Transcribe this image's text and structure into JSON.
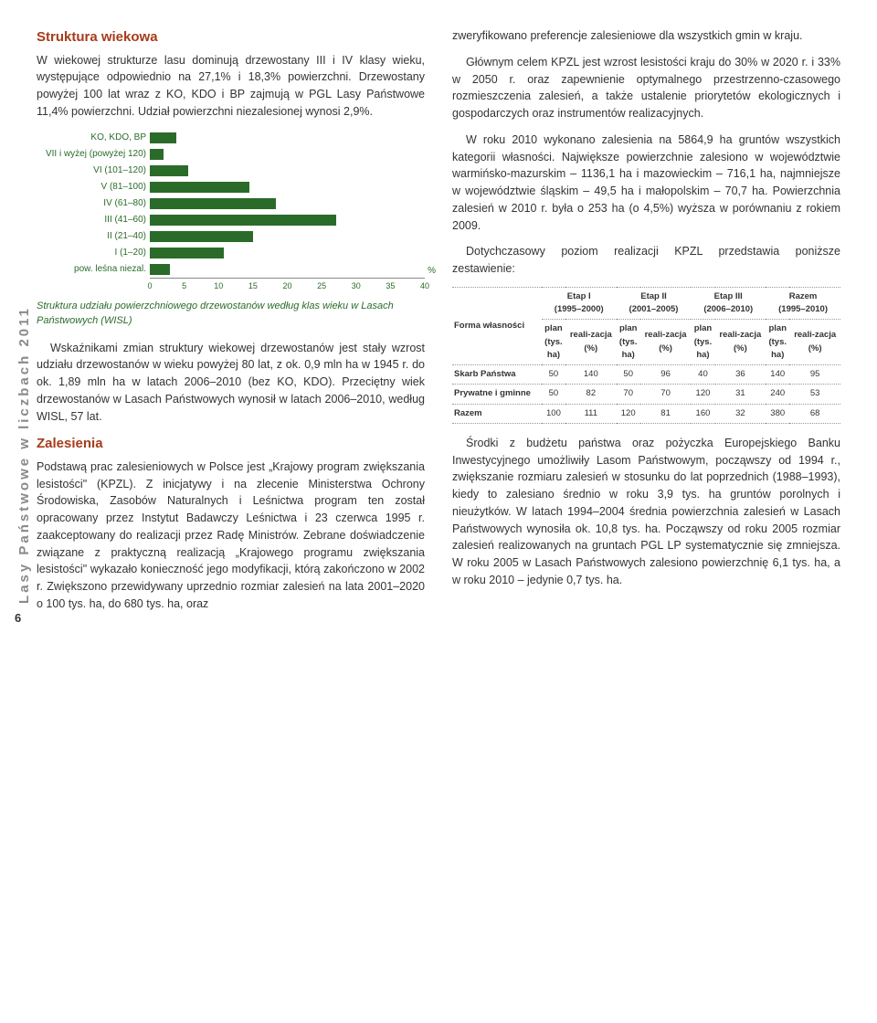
{
  "sidebar_label": "Lasy Państwowe w liczbach 2011",
  "page_number": "6",
  "sec1_title": "Struktura wiekowa",
  "sec1_p1": "W wiekowej strukturze lasu dominują drzewostany III i IV klasy wieku, występujące odpowiednio na 27,1% i 18,3% powierzchni. Drzewostany powyżej 100 lat wraz z KO, KDO i BP zajmują w PGL Lasy Państwowe 11,4% powierzchni. Udział powierzchni niezalesionej wynosi 2,9%.",
  "chart": {
    "type": "bar",
    "categories": [
      "KO, KDO, BP",
      "VII i wyżej (powyżej 120)",
      "VI (101–120)",
      "V (81–100)",
      "IV (61–80)",
      "III (41–60)",
      "II (21–40)",
      "I (1–20)",
      "pow. leśna niezal."
    ],
    "values": [
      3.8,
      2.0,
      5.6,
      14.5,
      18.3,
      27.1,
      15.0,
      10.8,
      2.9
    ],
    "bar_color": "#2a6b2a",
    "xlim": [
      0,
      40
    ],
    "xtick_step": 5,
    "label_fontsize": 10,
    "axis_unit": "%",
    "caption": "Struktura udziału powierzchniowego drzewostanów według klas wieku w Lasach Państwowych (WISL)"
  },
  "sec1_p2": "Wskaźnikami zmian struktury wiekowej drzewostanów jest stały wzrost udziału drzewostanów w wieku powyżej 80 lat, z ok. 0,9 mln ha w 1945 r. do ok. 1,89 mln ha w latach 2006–2010 (bez KO, KDO). Przeciętny wiek drzewostanów w Lasach Państwowych wynosił w latach 2006–2010, według WISL, 57 lat.",
  "sec2_title": "Zalesienia",
  "sec2_p1": "Podstawą prac zalesieniowych w Polsce jest „Krajowy program zwiększania lesistości\" (KPZL). Z inicjatywy i na zlecenie Ministerstwa Ochrony Środowiska, Zasobów Naturalnych i Leśnictwa program ten został opracowany przez Instytut Badawczy Leśnictwa i 23 czerwca 1995 r. zaakceptowany do realizacji przez Radę Ministrów. Zebrane doświadczenie związane z praktyczną realizacją „Krajowego programu zwiększania lesistości\" wykazało konieczność jego modyfikacji, którą zakończono w 2002 r. Zwiększono przewidywany uprzednio rozmiar zalesień na lata 2001–2020 o 100 tys. ha, do 680 tys. ha, oraz",
  "right_p1": "zweryfikowano preferencje zalesieniowe dla wszystkich gmin w kraju.",
  "right_p2": "Głównym celem KPZL jest wzrost lesistości kraju do 30% w 2020 r. i 33% w 2050 r. oraz zapewnienie optymalnego przestrzenno-czasowego rozmieszczenia zalesień, a także ustalenie priorytetów ekologicznych i gospodarczych oraz instrumentów realizacyjnych.",
  "right_p3": "W roku 2010 wykonano zalesienia na 5864,9 ha gruntów wszystkich kategorii własności. Największe powierzchnie zalesiono w województwie warmińsko-mazurskim – 1136,1 ha i mazowieckim – 716,1 ha, najmniejsze w województwie śląskim – 49,5 ha i małopolskim – 70,7 ha. Powierzchnia zalesień w 2010 r. była o 253 ha (o 4,5%) wyższa w porównaniu z rokiem 2009.",
  "right_p4": "Dotychczasowy poziom realizacji KPZL przedstawia poniższe zestawienie:",
  "kpzl_table": {
    "col_form": "Forma własności",
    "etaps": [
      "Etap I",
      "Etap II",
      "Etap III",
      "Razem"
    ],
    "etap_years": [
      "(1995–2000)",
      "(2001–2005)",
      "(2006–2010)",
      "(1995–2010)"
    ],
    "subcols": [
      "plan (tys. ha)",
      "reali-zacja (%)"
    ],
    "rows": [
      {
        "label": "Skarb Państwa",
        "vals": [
          "50",
          "140",
          "50",
          "96",
          "40",
          "36",
          "140",
          "95"
        ]
      },
      {
        "label": "Prywatne i gminne",
        "vals": [
          "50",
          "82",
          "70",
          "70",
          "120",
          "31",
          "240",
          "53"
        ]
      },
      {
        "label": "Razem",
        "vals": [
          "100",
          "111",
          "120",
          "81",
          "160",
          "32",
          "380",
          "68"
        ]
      }
    ]
  },
  "right_p5": "Środki z budżetu państwa oraz pożyczka Europejskiego Banku Inwestycyjnego umożliwiły Lasom Państwowym, począwszy od 1994 r., zwiększanie rozmiaru zalesień w stosunku do lat poprzednich (1988–1993), kiedy to zalesiano średnio w roku 3,9 tys. ha gruntów porolnych i nieużytków. W latach 1994–2004 średnia powierzchnia zalesień w Lasach Państwowych wynosiła ok. 10,8 tys. ha. Począwszy od roku 2005 rozmiar zalesień realizowanych na gruntach PGL LP systematycznie się zmniejsza. W roku 2005 w Lasach Państwowych zalesiono powierzchnię 6,1 tys. ha, a w roku 2010 – jedynie 0,7 tys. ha."
}
